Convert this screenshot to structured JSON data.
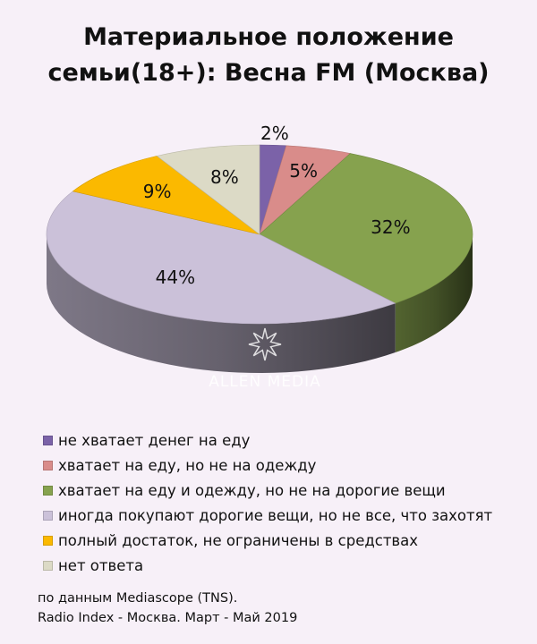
{
  "title_lines": [
    "Материальное положение",
    "семьи(18+): Весна FM (Москва)"
  ],
  "chart_data": {
    "type": "pie",
    "title": "Материальное положение семьи(18+): Весна FM (Москва)",
    "categories": [
      "не хватает денег на еду",
      "хватает на еду, но не на одежду",
      "хватает на еду и одежду, но не на дорогие вещи",
      "иногда покупают дорогие вещи, но не все, что захотят",
      "полный достаток, не ограничены в средствах",
      "нет ответа"
    ],
    "values": [
      2,
      5,
      32,
      44,
      9,
      8
    ],
    "labels": [
      "2%",
      "5%",
      "32%",
      "44%",
      "9%",
      "8%"
    ],
    "colors": [
      "#7b62a8",
      "#d98c8a",
      "#86a24e",
      "#cbc1d9",
      "#fbb900",
      "#dcdac6"
    ],
    "legend_position": "bottom"
  },
  "watermark": "ALLEN MEDIA",
  "source_lines": [
    "по данным Mediascope (TNS).",
    "Radio Index - Москва. Март - Май 2019"
  ]
}
